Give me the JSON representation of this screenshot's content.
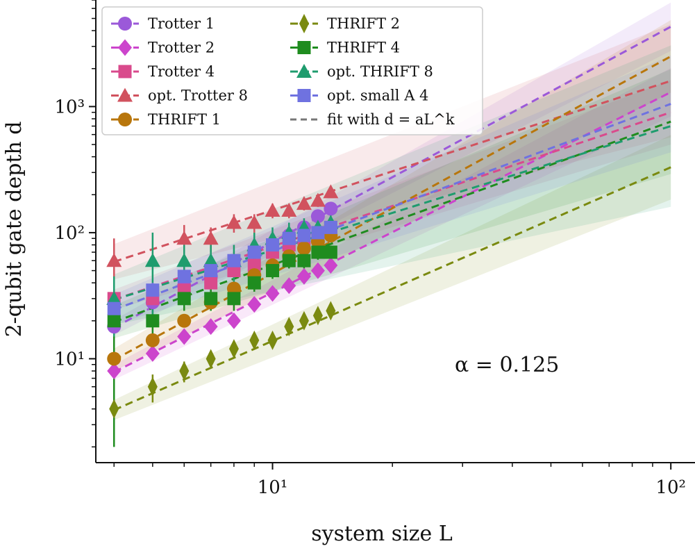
{
  "chart_data": {
    "type": "scatter",
    "title": "",
    "xlabel": "system size L",
    "ylabel": "2-qubit gate depth d",
    "xscale": "log",
    "yscale": "log",
    "xlim": [
      3.6,
      115
    ],
    "ylim": [
      1.5,
      7000
    ],
    "x_ticks": [
      {
        "value": 10,
        "label": "10¹"
      },
      {
        "value": 100,
        "label": "10²"
      }
    ],
    "y_ticks": [
      {
        "value": 10,
        "label": "10¹"
      },
      {
        "value": 100,
        "label": "10²"
      },
      {
        "value": 1000,
        "label": "10³"
      }
    ],
    "legend_position": "top-left",
    "legend_columns": 2,
    "annotation": "α = 0.125",
    "fit_legend_label": "fit with d = aL^k",
    "series": [
      {
        "name": "Trotter 1",
        "marker": "circle",
        "color": "#9b59d9",
        "x": [
          4,
          5,
          6,
          7,
          8,
          9,
          10,
          11,
          12,
          13,
          14
        ],
        "y": [
          18,
          28,
          38,
          45,
          55,
          70,
          80,
          95,
          110,
          135,
          155
        ],
        "err": [
          5,
          5,
          5,
          6,
          6,
          7,
          8,
          8,
          9,
          10,
          10
        ],
        "fit_end": 4300,
        "band": 0.06
      },
      {
        "name": "Trotter 2",
        "marker": "diamond",
        "color": "#cc44cc",
        "x": [
          4,
          5,
          6,
          7,
          8,
          9,
          10,
          11,
          12,
          13,
          14
        ],
        "y": [
          8,
          11,
          15,
          18,
          20,
          27,
          33,
          38,
          45,
          50,
          55
        ],
        "err": [
          1,
          1,
          1.5,
          2,
          2,
          2.5,
          3,
          3,
          4,
          4,
          5
        ],
        "fit_end": 1300,
        "band": 0.06
      },
      {
        "name": "Trotter 4",
        "marker": "square",
        "color": "#d94a8c",
        "x": [
          4,
          5,
          6,
          7,
          8,
          9,
          10,
          11,
          12,
          13,
          14
        ],
        "y": [
          30,
          30,
          35,
          40,
          50,
          55,
          70,
          80,
          90,
          100,
          110
        ],
        "err": [
          5,
          5,
          5,
          6,
          6,
          7,
          8,
          9,
          9,
          10,
          10
        ],
        "fit_end": 900,
        "band": 0.08
      },
      {
        "name": "opt. Trotter 8",
        "marker": "triangle",
        "color": "#d1525e",
        "x": [
          4,
          6,
          7,
          8,
          9,
          10,
          11,
          12,
          13,
          14
        ],
        "y": [
          60,
          90,
          90,
          120,
          120,
          150,
          150,
          170,
          180,
          210
        ],
        "err": [
          30,
          25,
          20,
          20,
          20,
          20,
          20,
          20,
          20,
          20
        ],
        "fit_end": 1600,
        "band": 0.14
      },
      {
        "name": "THRIFT 1",
        "marker": "circle",
        "color": "#b8760c",
        "x": [
          4,
          5,
          6,
          7,
          8,
          9,
          10,
          11,
          12,
          13,
          14
        ],
        "y": [
          10,
          14,
          20,
          28,
          36,
          46,
          55,
          65,
          75,
          85,
          95
        ],
        "err": [
          1.5,
          2,
          2,
          3,
          3,
          4,
          5,
          5,
          6,
          7,
          8
        ],
        "fit_end": 2500,
        "band": 0.09
      },
      {
        "name": "THRIFT 2",
        "marker": "thin-diamond",
        "color": "#7a8a10",
        "x": [
          4,
          5,
          6,
          7,
          8,
          9,
          10,
          11,
          12,
          13,
          14
        ],
        "y": [
          4,
          6,
          8,
          10,
          12,
          14,
          14,
          18,
          20,
          22,
          24
        ],
        "err": [
          1,
          1.5,
          1.5,
          1.5,
          1.5,
          1.5,
          1.5,
          2,
          2,
          2,
          2
        ],
        "fit_end": 330,
        "band": 0.08
      },
      {
        "name": "THRIFT 4",
        "marker": "square",
        "color": "#1f8c1f",
        "x": [
          4,
          5,
          6,
          7,
          8,
          9,
          10,
          11,
          12,
          13,
          14
        ],
        "y": [
          20,
          20,
          30,
          30,
          30,
          40,
          50,
          60,
          60,
          70,
          70
        ],
        "err": [
          18,
          5,
          6,
          6,
          6,
          6,
          7,
          8,
          8,
          9,
          9
        ],
        "fit_end": 760,
        "band": 0.13
      },
      {
        "name": "opt. THRIFT 8",
        "marker": "triangle",
        "color": "#1f9c6e",
        "x": [
          4,
          5,
          6,
          7,
          8,
          9,
          10,
          11,
          12,
          13,
          14
        ],
        "y": [
          30,
          60,
          60,
          60,
          60,
          80,
          90,
          100,
          110,
          110,
          120
        ],
        "err": [
          15,
          40,
          20,
          20,
          20,
          20,
          20,
          20,
          20,
          20,
          20
        ],
        "fit_end": 700,
        "band": 0.2
      },
      {
        "name": "opt. small A 4",
        "marker": "square",
        "color": "#6f72e0",
        "x": [
          4,
          5,
          6,
          7,
          8,
          9,
          10,
          11,
          12,
          13,
          14
        ],
        "y": [
          25,
          35,
          45,
          50,
          60,
          70,
          80,
          90,
          95,
          100,
          110
        ],
        "err": [
          5,
          5,
          5,
          6,
          6,
          7,
          8,
          8,
          9,
          10,
          10
        ],
        "fit_end": 1050,
        "band": 0.12
      }
    ]
  }
}
